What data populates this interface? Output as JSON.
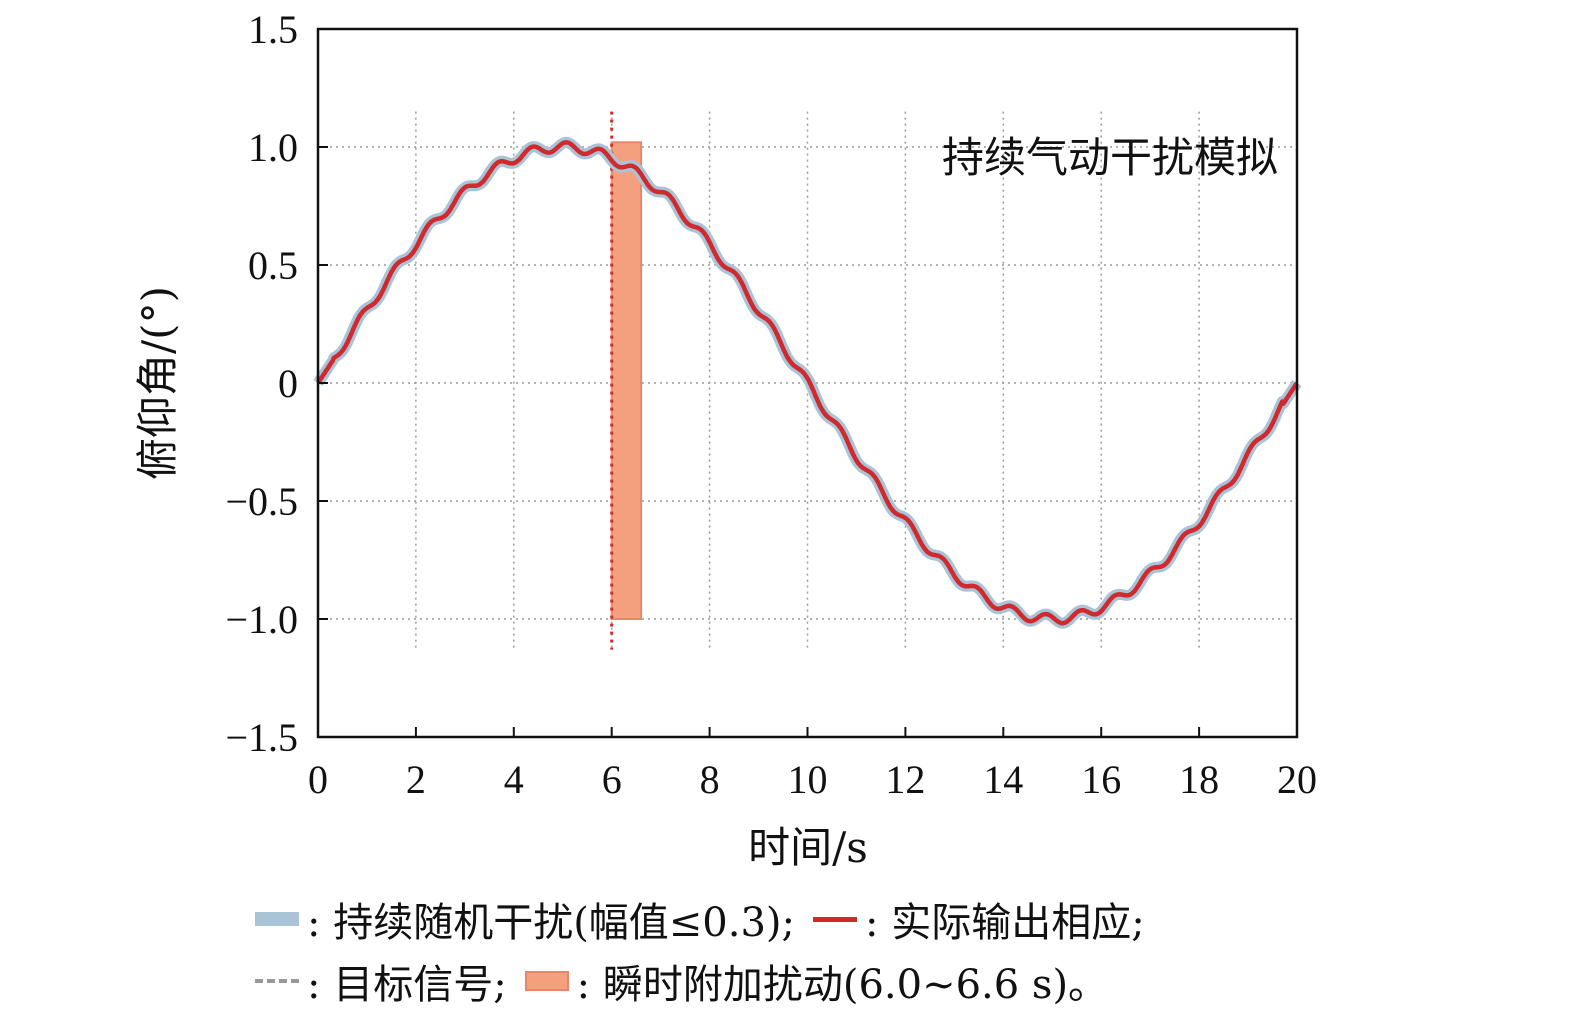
{
  "chart_data": {
    "type": "line",
    "annotation": "持续气动干扰模拟",
    "xlabel": "时间/s",
    "ylabel": "俯仰角/(°)",
    "xlim": [
      0,
      20
    ],
    "ylim": [
      -1.5,
      1.5
    ],
    "xticks": [
      "0",
      "2",
      "4",
      "6",
      "8",
      "10",
      "12",
      "14",
      "16",
      "18",
      "20"
    ],
    "yticks": [
      "1.5",
      "1.0",
      "0.5",
      "0",
      "−0.5",
      "−1.0",
      "−1.5"
    ],
    "ytick_values": [
      1.5,
      1.0,
      0.5,
      0,
      -0.5,
      -1.0,
      -1.5
    ],
    "grid": true,
    "target_signal": {
      "name": "目标信号",
      "formula": "sin(2πt/20)",
      "event_time": 6.0,
      "color": "#c8302c"
    },
    "series": [
      {
        "name": "持续随机干扰(幅值≤0.3)",
        "color": "#a9c3d7",
        "ripple_amplitude": 0.02,
        "ripple_period": 0.7
      },
      {
        "name": "实际输出相应",
        "color": "#d02a2e",
        "x": [
          0,
          1,
          2,
          3,
          4,
          5,
          6,
          7,
          8,
          9,
          10,
          11,
          12,
          13,
          14,
          15,
          16,
          17,
          18,
          19,
          20
        ],
        "y": [
          0,
          0.309,
          0.588,
          0.809,
          0.951,
          1.0,
          0.951,
          0.809,
          0.588,
          0.309,
          0,
          -0.309,
          -0.588,
          -0.809,
          -0.951,
          -1.0,
          -0.951,
          -0.809,
          -0.588,
          -0.309,
          0
        ]
      }
    ],
    "disturbance_window": {
      "name": "瞬时附加扰动(6.0~6.6 s)",
      "x": [
        6.0,
        6.6
      ],
      "y": [
        -1.0,
        1.02
      ],
      "color": "#f4a07e"
    },
    "legend_placement": "bottom"
  },
  "legend": {
    "row1": [
      {
        "label": ": 持续随机干扰(幅值≤0.3);"
      },
      {
        "label": ": 实际输出相应;"
      }
    ],
    "row2": [
      {
        "label": ": 目标信号;"
      },
      {
        "label": ": 瞬时附加扰动(6.0~6.6 s)。"
      }
    ]
  }
}
